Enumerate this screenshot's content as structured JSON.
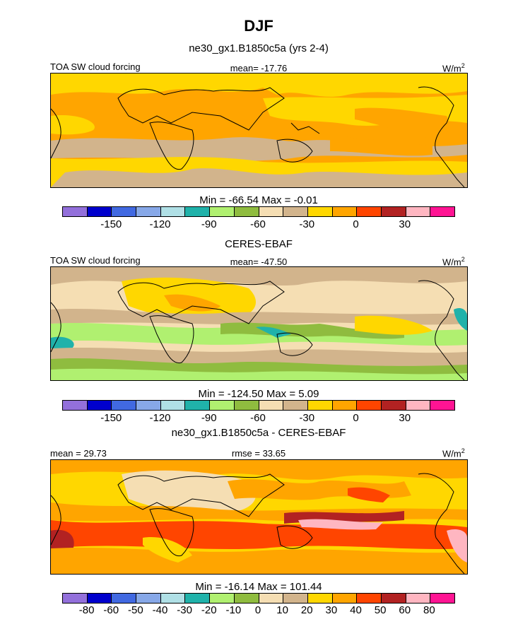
{
  "title": "DJF",
  "panel1": {
    "title": "ne30_gx1.B1850c5a (yrs 2-4)",
    "left_label": "TOA SW cloud forcing",
    "center_label": "mean= -17.76",
    "units": "W/m",
    "units_exp": "2",
    "minmax": "Min = -66.54 Max =  -0.01"
  },
  "panel2": {
    "title": "CERES-EBAF",
    "left_label": "TOA SW cloud forcing",
    "center_label": "mean= -47.50",
    "units": "W/m",
    "units_exp": "2",
    "minmax": "Min = -124.50 Max =   5.09"
  },
  "panel3": {
    "title": "ne30_gx1.B1850c5a - CERES-EBAF",
    "left_label": "mean =  29.73",
    "center_label": "rmse =  33.65",
    "units": "W/m",
    "units_exp": "2",
    "minmax": "Min = -16.14 Max = 101.44"
  },
  "colorbar_main": {
    "colors": [
      "#9370db",
      "#0000cd",
      "#4169e1",
      "#87a8e8",
      "#b0e0e6",
      "#20b2aa",
      "#b0f070",
      "#8fbc3f",
      "#f5deb3",
      "#d2b48c",
      "#ffd700",
      "#ffa500",
      "#ff4500",
      "#b22222",
      "#ffb6c1",
      "#ff1493"
    ],
    "ticks": [
      "-150",
      "-120",
      "-90",
      "-60",
      "-30",
      "0",
      "30"
    ]
  },
  "colorbar_diff": {
    "colors": [
      "#9370db",
      "#0000cd",
      "#4169e1",
      "#87a8e8",
      "#b0e0e6",
      "#20b2aa",
      "#b0f070",
      "#8fbc3f",
      "#f5deb3",
      "#d2b48c",
      "#ffd700",
      "#ffa500",
      "#ff4500",
      "#b22222",
      "#ffb6c1",
      "#ff1493"
    ],
    "ticks": [
      "-80",
      "-60",
      "-50",
      "-40",
      "-30",
      "-20",
      "-10",
      "0",
      "10",
      "20",
      "30",
      "40",
      "50",
      "60",
      "80"
    ]
  }
}
